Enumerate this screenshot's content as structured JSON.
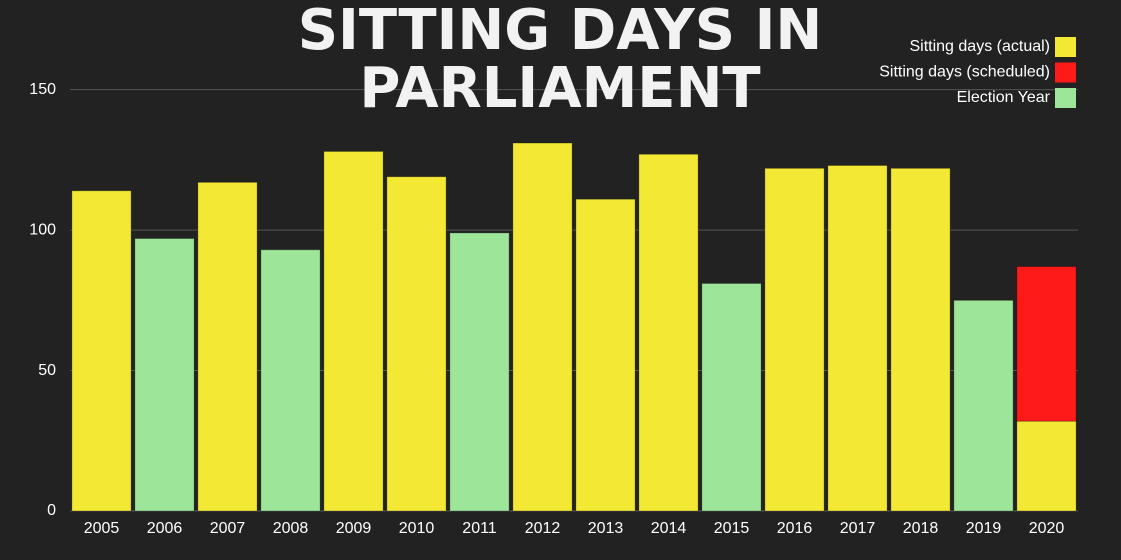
{
  "chart_data": {
    "type": "stacked_bar",
    "title": "SITTING DAYS IN PARLIAMENT",
    "categories": [
      "2005",
      "2006",
      "2007",
      "2008",
      "2009",
      "2010",
      "2011",
      "2012",
      "2013",
      "2014",
      "2015",
      "2016",
      "2017",
      "2018",
      "2019",
      "2020"
    ],
    "series": [
      {
        "name": "Sitting days (actual)",
        "color": "#f3e934",
        "values": [
          114,
          null,
          117,
          null,
          128,
          119,
          null,
          131,
          111,
          127,
          null,
          122,
          123,
          122,
          null,
          32
        ]
      },
      {
        "name": "Sitting days (scheduled)",
        "color": "#ff1a1a",
        "values": [
          null,
          null,
          null,
          null,
          null,
          null,
          null,
          null,
          null,
          null,
          null,
          null,
          null,
          null,
          null,
          55
        ]
      },
      {
        "name": "Election Year",
        "color": "#9de699",
        "values": [
          null,
          97,
          null,
          93,
          null,
          null,
          99,
          null,
          null,
          null,
          81,
          null,
          null,
          null,
          75,
          null
        ]
      }
    ],
    "ylim": [
      0,
      157
    ],
    "yticks": [
      0,
      50,
      100,
      150
    ],
    "grid": true,
    "legend": "top-right"
  }
}
